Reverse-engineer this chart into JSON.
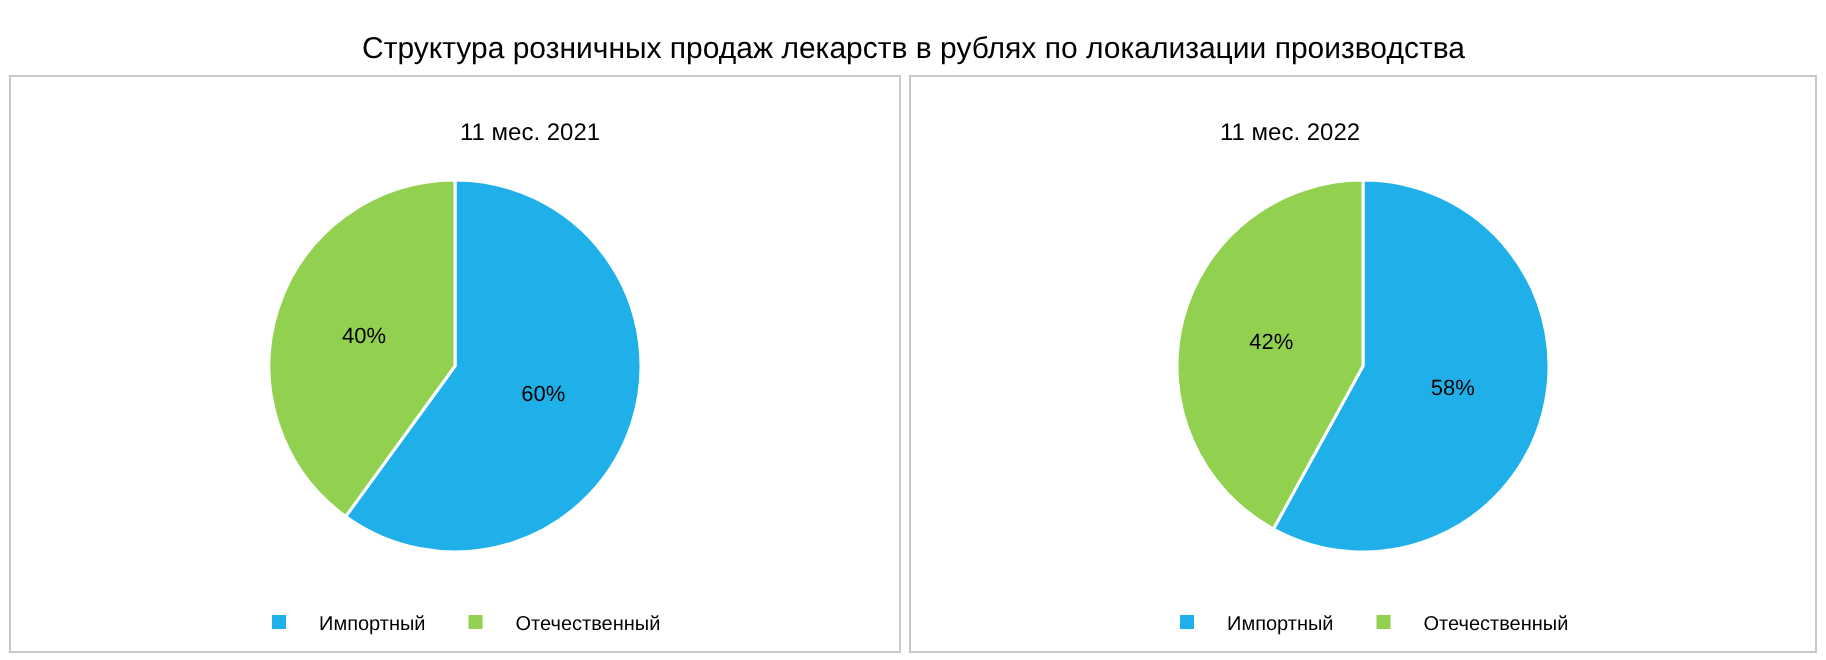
{
  "chart_data": [
    {
      "type": "other",
      "title": "Структура розничных продаж лекарств в рублях по локализации производства"
    },
    {
      "type": "pie",
      "title": "11 мес. 2021",
      "categories": [
        "Импортный",
        "Отечественный"
      ],
      "values": [
        60,
        40
      ],
      "colors": [
        "#1fb0ea",
        "#92d050"
      ],
      "value_labels": [
        "60%",
        "40%"
      ],
      "legend": "bottom"
    },
    {
      "type": "pie",
      "title": "11 мес. 2022",
      "categories": [
        "Импортный",
        "Отечественный"
      ],
      "values": [
        58,
        42
      ],
      "colors": [
        "#1fb0ea",
        "#92d050"
      ],
      "value_labels": [
        "58%",
        "42%"
      ],
      "legend": "bottom"
    }
  ]
}
